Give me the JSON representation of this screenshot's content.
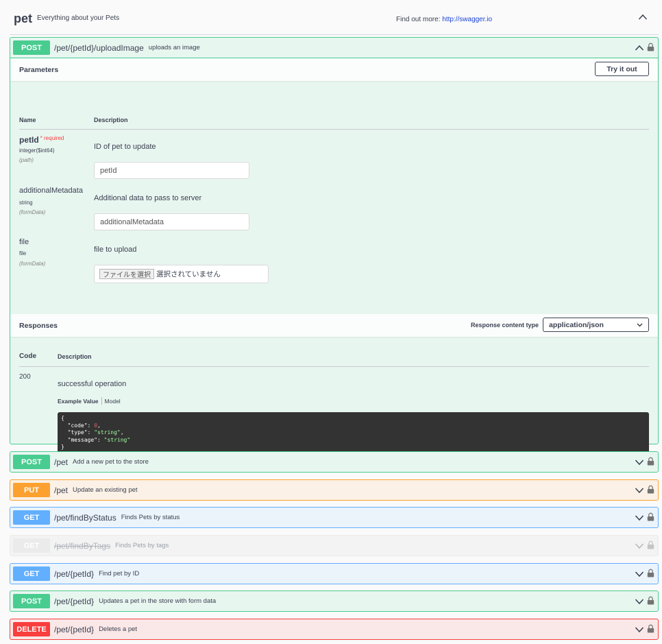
{
  "tag": {
    "name": "pet",
    "description": "Everything about your Pets",
    "find_out_more_label": "Find out more:",
    "find_out_more_link": "http://swagger.io"
  },
  "expanded_operation": {
    "method": "POST",
    "path": "/pet/{petId}/uploadImage",
    "summary": "uploads an image",
    "parameters_title": "Parameters",
    "try_it_out_label": "Try it out",
    "columns": {
      "name": "Name",
      "description": "Description"
    },
    "parameters": [
      {
        "name": "petId",
        "required_label": "required",
        "type": "integer($int64)",
        "in": "(path)",
        "description": "ID of pet to update",
        "placeholder": "petId"
      },
      {
        "name": "additionalMetadata",
        "type": "string",
        "in": "(formData)",
        "description": "Additional data to pass to server",
        "placeholder": "additionalMetadata"
      },
      {
        "name": "file",
        "type": "file",
        "in": "(formData)",
        "description": "file to upload",
        "file_button": "ファイルを選択",
        "file_status": "選択されていません"
      }
    ],
    "responses_title": "Responses",
    "response_content_type_label": "Response content type",
    "response_content_type": "application/json",
    "response_columns": {
      "code": "Code",
      "description": "Description"
    },
    "responses": [
      {
        "code": "200",
        "description": "successful operation",
        "example_value_tab": "Example Value",
        "model_tab": "Model",
        "example": {
          "open": "{",
          "lines": [
            {
              "key": "\"code\"",
              "value": "0",
              "kind": "num",
              "trail": ","
            },
            {
              "key": "\"type\"",
              "value": "\"string\"",
              "kind": "str",
              "trail": ","
            },
            {
              "key": "\"message\"",
              "value": "\"string\"",
              "kind": "str",
              "trail": ""
            }
          ],
          "close": "}"
        }
      }
    ]
  },
  "operations": [
    {
      "method": "POST",
      "path": "/pet",
      "summary": "Add a new pet to the store"
    },
    {
      "method": "PUT",
      "path": "/pet",
      "summary": "Update an existing pet"
    },
    {
      "method": "GET",
      "path": "/pet/findByStatus",
      "summary": "Finds Pets by status"
    },
    {
      "method": "GET",
      "path": "/pet/findByTags",
      "summary": "Finds Pets by tags"
    },
    {
      "method": "GET",
      "path": "/pet/{petId}",
      "summary": "Find pet by ID"
    },
    {
      "method": "POST",
      "path": "/pet/{petId}",
      "summary": "Updates a pet in the store with form data"
    },
    {
      "method": "DELETE",
      "path": "/pet/{petId}",
      "summary": "Deletes a pet"
    }
  ],
  "colors": {
    "post": "#49cc90",
    "put": "#fca130",
    "get": "#61affe",
    "delete": "#f93e3e",
    "deprecated": "#ebebeb"
  },
  "icons": {
    "collapse": "chevron-up-icon",
    "expand": "chevron-down-icon",
    "auth": "lock-icon"
  }
}
